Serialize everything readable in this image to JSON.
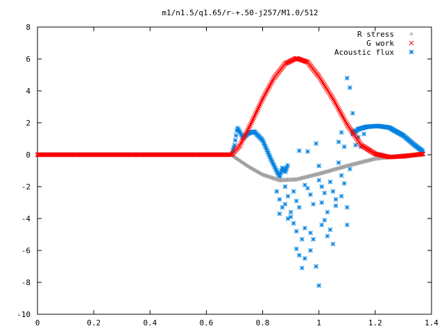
{
  "chart_data": {
    "type": "scatter",
    "title": "m1/n1.5/q1.65/r-+.50-j257/M1.0/512",
    "xlabel": "",
    "ylabel": "",
    "xlim": [
      0,
      1.4
    ],
    "ylim": [
      -10,
      8
    ],
    "grid": false,
    "legend_position": "top-right",
    "xticks": [
      0,
      0.2,
      0.4,
      0.6,
      0.8,
      1,
      1.2,
      1.4
    ],
    "yticks": [
      -10,
      -8,
      -6,
      -4,
      -2,
      0,
      2,
      4,
      6,
      8
    ],
    "xtick_labels": [
      "0",
      "0.2",
      "0.4",
      "0.6",
      "0.8",
      "1",
      "1.2",
      "1.4"
    ],
    "ytick_labels": [
      "-10",
      "-8",
      "-6",
      "-4",
      "-2",
      "0",
      "2",
      "4",
      "6",
      "8"
    ],
    "series": [
      {
        "name": "R stress",
        "marker": "plus",
        "color": "#a0a0a0",
        "curve": [
          [
            0,
            0
          ],
          [
            0.69,
            0
          ],
          [
            0.7,
            -0.15
          ],
          [
            0.75,
            -0.75
          ],
          [
            0.8,
            -1.25
          ],
          [
            0.86,
            -1.6
          ],
          [
            0.92,
            -1.55
          ],
          [
            1.0,
            -1.2
          ],
          [
            1.1,
            -0.7
          ],
          [
            1.2,
            -0.25
          ],
          [
            1.3,
            -0.05
          ],
          [
            1.37,
            0
          ]
        ]
      },
      {
        "name": "G work",
        "marker": "x",
        "color": "#ff0000",
        "curve": [
          [
            0,
            0
          ],
          [
            0.69,
            0
          ],
          [
            0.72,
            0.6
          ],
          [
            0.76,
            2.0
          ],
          [
            0.8,
            3.5
          ],
          [
            0.84,
            4.8
          ],
          [
            0.88,
            5.7
          ],
          [
            0.92,
            6.05
          ],
          [
            0.96,
            5.8
          ],
          [
            1.0,
            4.9
          ],
          [
            1.05,
            3.5
          ],
          [
            1.1,
            1.9
          ],
          [
            1.15,
            0.6
          ],
          [
            1.2,
            0.05
          ],
          [
            1.25,
            -0.15
          ],
          [
            1.3,
            -0.1
          ],
          [
            1.37,
            0.05
          ]
        ]
      },
      {
        "name": "Acoustic flux",
        "marker": "star",
        "color": "#0080e0",
        "curve": [
          [
            0,
            0
          ],
          [
            0.69,
            0
          ],
          [
            0.7,
            0.6
          ],
          [
            0.71,
            1.7
          ],
          [
            0.72,
            1.4
          ],
          [
            0.73,
            1.05
          ],
          [
            0.75,
            1.35
          ],
          [
            0.77,
            1.45
          ],
          [
            0.8,
            0.9
          ],
          [
            0.83,
            -0.3
          ],
          [
            0.86,
            -1.4
          ],
          [
            0.87,
            -0.8
          ],
          [
            0.88,
            -1.1
          ],
          [
            0.89,
            -0.6
          ]
        ],
        "curve2": [
          [
            1.12,
            1.3
          ],
          [
            1.14,
            1.6
          ],
          [
            1.17,
            1.75
          ],
          [
            1.21,
            1.8
          ],
          [
            1.25,
            1.7
          ],
          [
            1.3,
            1.2
          ],
          [
            1.34,
            0.6
          ],
          [
            1.37,
            0.2
          ]
        ],
        "scatter": [
          [
            0.85,
            -2.3
          ],
          [
            0.86,
            -2.8
          ],
          [
            0.87,
            -3.3
          ],
          [
            0.86,
            -3.7
          ],
          [
            0.88,
            -2.0
          ],
          [
            0.89,
            -2.6
          ],
          [
            0.88,
            -3.1
          ],
          [
            0.9,
            -3.6
          ],
          [
            0.89,
            -4.0
          ],
          [
            0.91,
            -2.3
          ],
          [
            0.92,
            -2.9
          ],
          [
            0.9,
            -3.9
          ],
          [
            0.91,
            -4.3
          ],
          [
            0.92,
            -4.8
          ],
          [
            0.93,
            -3.3
          ],
          [
            0.92,
            -5.9
          ],
          [
            0.93,
            -6.3
          ],
          [
            0.94,
            -7.1
          ],
          [
            0.95,
            -6.5
          ],
          [
            0.94,
            -5.3
          ],
          [
            0.95,
            -4.6
          ],
          [
            0.96,
            -2.1
          ],
          [
            0.97,
            -4.9
          ],
          [
            0.98,
            -5.3
          ],
          [
            0.97,
            -6.0
          ],
          [
            0.99,
            -7.0
          ],
          [
            1.0,
            -8.2
          ],
          [
            0.93,
            0.25
          ],
          [
            0.96,
            0.2
          ],
          [
            0.99,
            0.7
          ],
          [
            1.0,
            -0.7
          ],
          [
            1.0,
            -1.6
          ],
          [
            1.01,
            -2.0
          ],
          [
            1.02,
            -2.4
          ],
          [
            1.01,
            -3.0
          ],
          [
            1.02,
            -4.1
          ],
          [
            1.03,
            -3.6
          ],
          [
            1.04,
            -1.7
          ],
          [
            1.05,
            -2.3
          ],
          [
            1.06,
            -2.8
          ],
          [
            1.04,
            -4.7
          ],
          [
            1.05,
            -5.6
          ],
          [
            1.07,
            -0.5
          ],
          [
            1.08,
            -1.3
          ],
          [
            1.07,
            0.8
          ],
          [
            1.08,
            1.4
          ],
          [
            1.09,
            0.5
          ],
          [
            1.09,
            -1.8
          ],
          [
            1.1,
            -3.3
          ],
          [
            1.11,
            -0.9
          ],
          [
            1.1,
            4.8
          ],
          [
            1.11,
            4.2
          ],
          [
            1.12,
            2.6
          ],
          [
            1.12,
            1.5
          ],
          [
            1.13,
            0.6
          ],
          [
            1.14,
            1.1
          ],
          [
            1.15,
            0.5
          ],
          [
            1.16,
            1.3
          ],
          [
            1.1,
            -4.4
          ],
          [
            1.08,
            -2.6
          ],
          [
            1.06,
            -3.2
          ],
          [
            1.03,
            -5.1
          ],
          [
            1.01,
            -4.4
          ],
          [
            0.98,
            -3.1
          ],
          [
            0.97,
            -2.5
          ],
          [
            0.95,
            -1.9
          ]
        ]
      }
    ]
  }
}
